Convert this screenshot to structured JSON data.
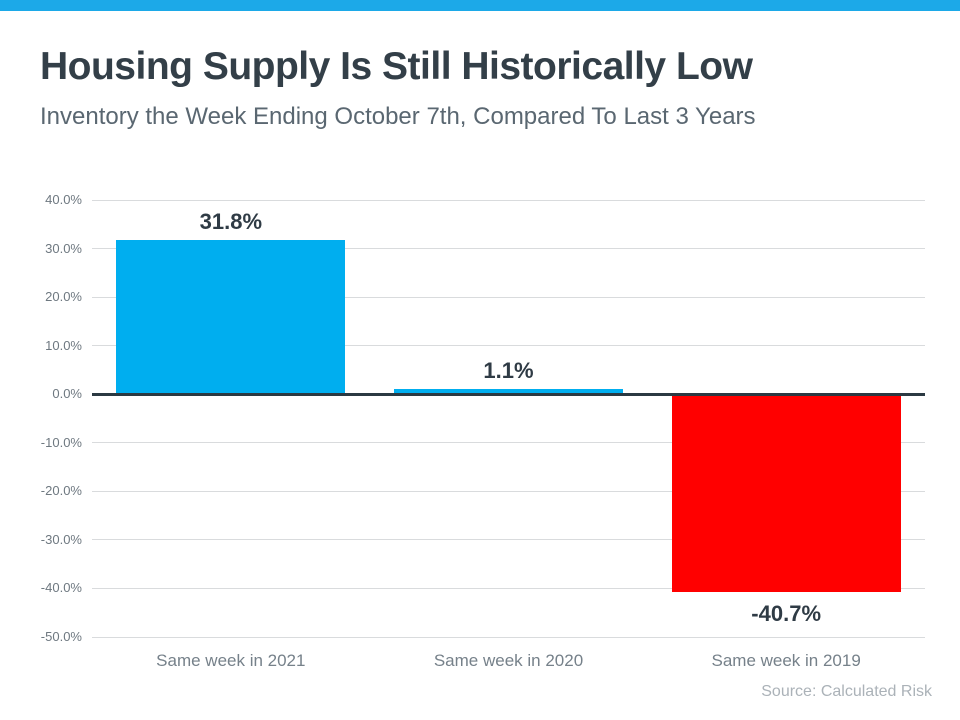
{
  "header": {
    "stripe_color": "#1CA9E8",
    "title": "Housing Supply Is Still Historically Low",
    "subtitle": "Inventory the Week Ending October 7th, Compared To Last 3 Years"
  },
  "chart_data": {
    "type": "bar",
    "title": "Housing Supply Is Still Historically Low",
    "categories": [
      "Same week in 2021",
      "Same week in 2020",
      "Same week in 2019"
    ],
    "values": [
      31.8,
      1.1,
      -40.7
    ],
    "data_labels": [
      "31.8%",
      "1.1%",
      "-40.7%"
    ],
    "ylim": [
      -50,
      40
    ],
    "ytick_step": 10,
    "ytick_labels": [
      "40.0%",
      "30.0%",
      "20.0%",
      "10.0%",
      "0.0%",
      "-10.0%",
      "-20.0%",
      "-30.0%",
      "-40.0%",
      "-50.0%"
    ],
    "grid": true,
    "legend_position": "none",
    "positive_bar_color": "#00AEEF",
    "negative_bar_color": "#FF0000",
    "gridline_color": "#D9DBDD",
    "zero_line_color": "#2B3942"
  },
  "footer": {
    "source": "Source: Calculated Risk"
  }
}
